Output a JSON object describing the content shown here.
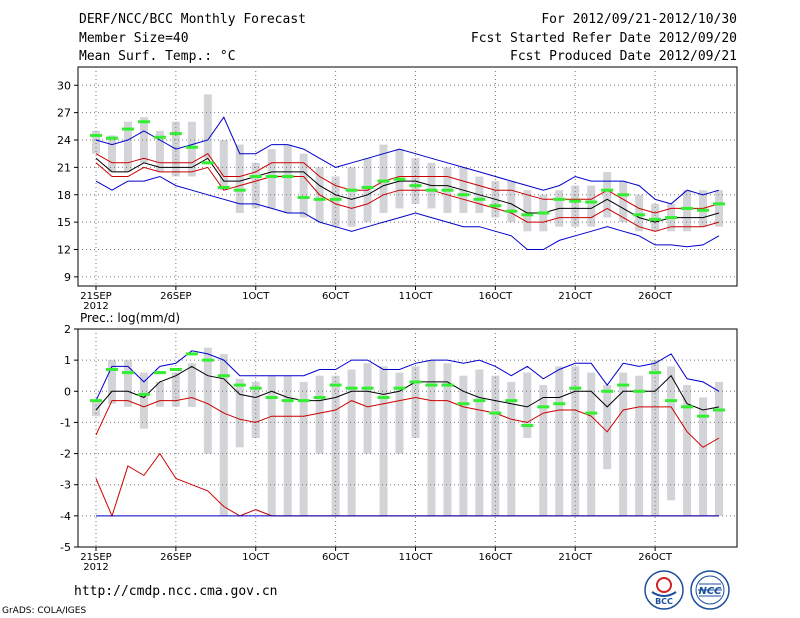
{
  "header": {
    "title": "DERF/NCC/BCC Monthly Forecast",
    "member_size": "Member Size=40",
    "variable": "Mean Surf. Temp.: °C",
    "for_period": "For 2012/09/21-2012/10/30",
    "fcst_started": "Fcst Started Refer Date 2012/09/20",
    "fcst_produced": "Fcst Produced Date 2012/09/21"
  },
  "footer": {
    "url": "http://cmdp.ncc.cma.gov.cn",
    "grads": "GrADS: COLA/IGES",
    "logo_bcc": "BCC",
    "logo_ncc": "NCC"
  },
  "colors": {
    "box": "#d2d4d8",
    "blue": "#0000cc",
    "red": "#cc0000",
    "mean": "#000000",
    "green": "#33ee33",
    "grid": "#777777"
  },
  "chart_data": [
    {
      "type": "box-plume",
      "title": "Mean Surf. Temp.: °C",
      "xlabel_ticks": [
        "21SEP",
        "26SEP",
        "1OCT",
        "6OCT",
        "11OCT",
        "16OCT",
        "21OCT",
        "26OCT"
      ],
      "x_tick_days": [
        0,
        5,
        10,
        15,
        20,
        25,
        30,
        35
      ],
      "x_year_label": "2012",
      "ylim": [
        8,
        32
      ],
      "yticks": [
        9,
        12,
        15,
        18,
        21,
        24,
        27,
        30
      ],
      "days": 40,
      "max": [
        19.5,
        18.5,
        19.5,
        19.5,
        20.0,
        19.0,
        18.5,
        18.0,
        17.5,
        17.0,
        17.0,
        16.5,
        16.0,
        16.0,
        15.0,
        14.5,
        14.0,
        14.5,
        15.0,
        15.5,
        16.0,
        15.5,
        15.0,
        14.5,
        14.5,
        14.0,
        13.5,
        12.0,
        12.0,
        13.0,
        13.5,
        14.0,
        14.5,
        14.0,
        13.5,
        12.5,
        12.5,
        12.3,
        12.5,
        13.5
      ],
      "max_hi": [
        24.0,
        23.5,
        24.0,
        25.0,
        24.0,
        23.0,
        23.5,
        24.0,
        26.5,
        22.5,
        22.5,
        23.5,
        23.5,
        23.0,
        22.0,
        21.0,
        21.5,
        22.0,
        22.5,
        23.0,
        22.5,
        22.0,
        21.5,
        21.0,
        20.5,
        20.0,
        19.5,
        19.0,
        18.5,
        19.0,
        20.0,
        19.5,
        19.5,
        19.5,
        19.0,
        17.5,
        17.0,
        18.5,
        18.0,
        18.5
      ],
      "p_hi": [
        22.5,
        21.5,
        21.5,
        22.0,
        21.5,
        21.5,
        21.5,
        22.5,
        20.0,
        20.0,
        20.5,
        21.5,
        21.5,
        21.5,
        20.0,
        19.0,
        18.5,
        18.5,
        19.5,
        20.0,
        20.0,
        20.0,
        20.0,
        19.5,
        19.0,
        18.5,
        18.5,
        18.0,
        17.5,
        17.5,
        17.5,
        17.5,
        18.5,
        17.5,
        16.5,
        16.0,
        16.5,
        16.5,
        16.5,
        17.0
      ],
      "mean": [
        22.0,
        20.5,
        20.5,
        21.5,
        21.0,
        21.0,
        21.0,
        22.0,
        19.5,
        19.5,
        20.0,
        20.5,
        20.5,
        20.5,
        19.0,
        18.0,
        17.5,
        18.0,
        19.0,
        19.5,
        19.5,
        19.0,
        19.0,
        18.5,
        18.0,
        17.5,
        17.0,
        16.0,
        16.0,
        16.5,
        16.5,
        16.5,
        17.5,
        16.5,
        15.5,
        15.0,
        15.5,
        15.5,
        15.5,
        16.0
      ],
      "p_lo": [
        21.5,
        20.0,
        20.0,
        21.0,
        20.5,
        20.5,
        20.5,
        21.0,
        18.5,
        19.0,
        19.5,
        20.0,
        20.0,
        20.0,
        18.0,
        17.0,
        16.5,
        17.0,
        18.0,
        18.5,
        18.5,
        18.5,
        18.0,
        17.5,
        17.0,
        16.5,
        16.0,
        15.0,
        15.0,
        15.5,
        15.5,
        15.5,
        16.5,
        15.5,
        14.5,
        14.0,
        14.5,
        14.5,
        14.5,
        15.0
      ],
      "box_top": [
        25.0,
        24.5,
        26.0,
        26.5,
        25.0,
        26.0,
        26.0,
        29.0,
        24.0,
        23.5,
        21.5,
        23.0,
        23.5,
        22.5,
        21.0,
        20.0,
        21.0,
        22.0,
        23.5,
        23.0,
        22.0,
        21.5,
        21.0,
        21.0,
        20.0,
        19.5,
        19.5,
        18.5,
        18.0,
        18.5,
        19.0,
        19.0,
        20.5,
        19.5,
        18.0,
        17.0,
        17.0,
        18.5,
        18.5,
        18.5
      ],
      "box_bot": [
        22.5,
        20.5,
        20.5,
        21.5,
        20.5,
        20.0,
        20.0,
        22.0,
        18.5,
        16.0,
        16.5,
        16.5,
        16.0,
        15.5,
        15.0,
        14.5,
        14.5,
        15.0,
        16.0,
        16.5,
        17.0,
        16.5,
        16.0,
        16.0,
        16.0,
        15.5,
        15.0,
        14.0,
        14.0,
        14.5,
        14.5,
        14.5,
        15.5,
        15.0,
        14.0,
        14.0,
        14.0,
        14.0,
        14.5,
        14.5
      ],
      "observed": [
        24.5,
        24.2,
        25.2,
        26.0,
        24.3,
        24.7,
        23.2,
        21.5,
        18.8,
        18.5,
        20.0,
        20.0,
        20.0,
        17.7,
        17.5,
        17.5,
        18.5,
        18.8,
        19.5,
        19.7,
        19.0,
        18.5,
        18.5,
        18.0,
        17.5,
        16.8,
        16.2,
        15.8,
        16.0,
        17.5,
        17.3,
        17.2,
        18.5,
        18.0,
        15.8,
        15.3,
        15.5,
        16.5,
        16.3,
        17.0
      ]
    },
    {
      "type": "box-plume",
      "title": "Prec.: log(mm/d)",
      "xlabel_ticks": [
        "21SEP",
        "26SEP",
        "1OCT",
        "6OCT",
        "11OCT",
        "16OCT",
        "21OCT",
        "26OCT"
      ],
      "x_tick_days": [
        0,
        5,
        10,
        15,
        20,
        25,
        30,
        35
      ],
      "x_year_label": "2012",
      "ylim": [
        -5,
        2
      ],
      "yticks": [
        -5,
        -4,
        -3,
        -2,
        -1,
        0,
        1,
        2
      ],
      "days": 40,
      "max": [
        -0.3,
        0.8,
        0.8,
        0.3,
        0.8,
        0.9,
        1.3,
        1.2,
        1.0,
        0.5,
        0.5,
        0.5,
        0.5,
        0.5,
        0.7,
        0.7,
        1.0,
        1.0,
        0.7,
        0.7,
        0.9,
        1.0,
        1.0,
        0.9,
        1.0,
        0.8,
        0.5,
        0.8,
        0.4,
        0.7,
        0.9,
        0.9,
        0.2,
        0.9,
        0.8,
        0.9,
        1.2,
        0.4,
        0.3,
        0.0
      ],
      "mean": [
        -0.6,
        0.0,
        0.0,
        -0.2,
        0.3,
        0.5,
        0.8,
        0.5,
        0.4,
        -0.1,
        -0.2,
        0.0,
        -0.2,
        -0.3,
        -0.3,
        -0.2,
        0.0,
        0.0,
        -0.1,
        0.0,
        0.3,
        0.3,
        0.3,
        0.0,
        -0.2,
        -0.3,
        -0.4,
        -0.5,
        -0.2,
        -0.2,
        0.0,
        0.0,
        -0.5,
        0.0,
        0.0,
        0.0,
        0.5,
        -0.4,
        -0.6,
        -0.5
      ],
      "p_lo": [
        -1.4,
        -0.3,
        -0.3,
        -0.5,
        -0.3,
        -0.3,
        -0.2,
        -0.4,
        -0.7,
        -0.9,
        -1.0,
        -0.8,
        -0.8,
        -0.8,
        -0.7,
        -0.6,
        -0.3,
        -0.5,
        -0.4,
        -0.3,
        -0.2,
        -0.3,
        -0.3,
        -0.5,
        -0.6,
        -0.7,
        -0.9,
        -1.0,
        -0.7,
        -0.6,
        -0.6,
        -0.8,
        -1.3,
        -0.6,
        -0.5,
        -0.5,
        -0.5,
        -1.3,
        -1.8,
        -1.5
      ],
      "min": [
        -2.8,
        -4.0,
        -2.4,
        -2.7,
        -2.0,
        -2.8,
        -3.0,
        -3.2,
        -3.7,
        -4.0,
        -3.8,
        -4.0,
        -4.0,
        -4.0,
        -4.0,
        -4.0,
        -4.0,
        -4.0,
        -4.0,
        -4.0,
        -4.0,
        -4.0,
        -4.0,
        -4.0,
        -4.0,
        -4.0,
        -4.0,
        -4.0,
        -4.0,
        -4.0,
        -4.0,
        -4.0,
        -4.0,
        -4.0,
        -4.0,
        -4.0,
        -4.0,
        -4.0,
        -4.0,
        -4.0
      ],
      "box_top": [
        -0.3,
        1.0,
        1.0,
        0.6,
        0.3,
        0.6,
        0.9,
        1.4,
        1.2,
        0.4,
        0.3,
        0.5,
        0.5,
        0.3,
        0.5,
        0.5,
        0.7,
        0.9,
        0.8,
        0.6,
        0.8,
        1.0,
        0.9,
        0.5,
        0.7,
        0.5,
        0.3,
        0.6,
        0.2,
        0.8,
        0.8,
        0.6,
        0.2,
        0.6,
        0.5,
        1.0,
        0.8,
        0.2,
        -0.2,
        0.3
      ],
      "box_bot": [
        -0.8,
        -0.4,
        -0.5,
        -1.2,
        -0.5,
        -0.5,
        -0.5,
        -2.0,
        -4.0,
        -1.8,
        -1.5,
        -4.0,
        -4.0,
        -4.0,
        -2.0,
        -4.0,
        -4.0,
        -2.0,
        -4.0,
        -2.0,
        -1.5,
        -4.0,
        -4.0,
        -4.0,
        -4.0,
        -4.0,
        -4.0,
        -1.5,
        -4.0,
        -4.0,
        -4.0,
        -4.0,
        -2.5,
        -4.0,
        -4.0,
        -4.0,
        -3.5,
        -4.0,
        -4.0,
        -4.0
      ],
      "observed": [
        -0.3,
        0.7,
        0.6,
        -0.1,
        0.6,
        0.7,
        1.2,
        1.0,
        0.5,
        0.2,
        0.1,
        -0.2,
        -0.3,
        -0.3,
        -0.2,
        0.2,
        0.1,
        0.1,
        -0.2,
        0.1,
        0.3,
        0.2,
        0.2,
        -0.4,
        -0.3,
        -0.7,
        -0.3,
        -1.1,
        -0.5,
        -0.4,
        0.1,
        -0.7,
        0.0,
        0.2,
        0.0,
        0.6,
        -0.3,
        -0.5,
        -0.8,
        -0.6
      ]
    }
  ]
}
